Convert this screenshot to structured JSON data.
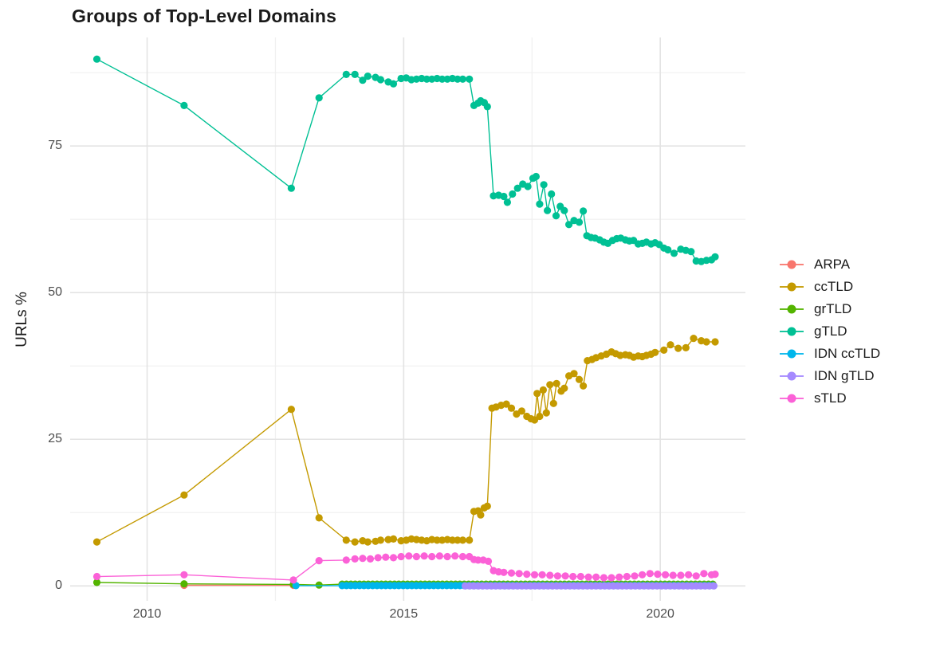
{
  "page": {
    "background": "#ffffff"
  },
  "chart_data": {
    "type": "line",
    "title": "Groups of Top-Level Domains",
    "xlabel": "",
    "ylabel": "URLs %",
    "xlim": [
      2008.5,
      2021.66
    ],
    "ylim": [
      -2.0,
      93.5
    ],
    "grid_on": true,
    "legend_position": "right",
    "x_ticks": [
      {
        "value": 2010,
        "label": "2010"
      },
      {
        "value": 2015,
        "label": "2015"
      },
      {
        "value": 2020,
        "label": "2020"
      }
    ],
    "x_minor_ticks": [
      2012.5,
      2017.5
    ],
    "y_ticks": [
      {
        "value": 0,
        "label": "0"
      },
      {
        "value": 25,
        "label": "25"
      },
      {
        "value": 50,
        "label": "50"
      },
      {
        "value": 75,
        "label": "75"
      }
    ],
    "y_minor_ticks": [
      12.5,
      37.5,
      62.5,
      87.5
    ],
    "grid": {
      "major_color": "#e3e3e3",
      "minor_color": "#f0f0f0",
      "background": "#ffffff"
    },
    "series": [
      {
        "name": "ARPA",
        "color": "#F8766D",
        "points": [
          [
            2010.72,
            0.1
          ],
          [
            2012.85,
            0.1
          ]
        ]
      },
      {
        "name": "ccTLD",
        "color": "#C49A00",
        "points": [
          [
            2009.02,
            7.5
          ],
          [
            2010.72,
            15.5
          ],
          [
            2012.81,
            30.1
          ],
          [
            2013.35,
            11.6
          ],
          [
            2013.88,
            7.8
          ],
          [
            2014.05,
            7.5
          ],
          [
            2014.2,
            7.7
          ],
          [
            2014.3,
            7.5
          ],
          [
            2014.45,
            7.6
          ],
          [
            2014.55,
            7.8
          ],
          [
            2014.7,
            7.9
          ],
          [
            2014.8,
            8.0
          ],
          [
            2014.95,
            7.7
          ],
          [
            2015.05,
            7.8
          ],
          [
            2015.15,
            8.0
          ],
          [
            2015.25,
            7.9
          ],
          [
            2015.35,
            7.8
          ],
          [
            2015.45,
            7.7
          ],
          [
            2015.55,
            7.9
          ],
          [
            2015.65,
            7.8
          ],
          [
            2015.75,
            7.8
          ],
          [
            2015.85,
            7.9
          ],
          [
            2015.95,
            7.8
          ],
          [
            2016.05,
            7.8
          ],
          [
            2016.15,
            7.8
          ],
          [
            2016.28,
            7.8
          ],
          [
            2016.37,
            12.7
          ],
          [
            2016.45,
            12.8
          ],
          [
            2016.5,
            12.1
          ],
          [
            2016.57,
            13.3
          ],
          [
            2016.63,
            13.6
          ],
          [
            2016.72,
            30.3
          ],
          [
            2016.8,
            30.5
          ],
          [
            2016.9,
            30.8
          ],
          [
            2017.0,
            31.0
          ],
          [
            2017.1,
            30.3
          ],
          [
            2017.2,
            29.3
          ],
          [
            2017.3,
            29.8
          ],
          [
            2017.4,
            28.9
          ],
          [
            2017.48,
            28.5
          ],
          [
            2017.55,
            28.3
          ],
          [
            2017.6,
            32.8
          ],
          [
            2017.65,
            28.9
          ],
          [
            2017.72,
            33.4
          ],
          [
            2017.78,
            29.5
          ],
          [
            2017.85,
            34.3
          ],
          [
            2017.92,
            31.1
          ],
          [
            2017.98,
            34.5
          ],
          [
            2018.07,
            33.2
          ],
          [
            2018.13,
            33.7
          ],
          [
            2018.22,
            35.8
          ],
          [
            2018.32,
            36.2
          ],
          [
            2018.42,
            35.2
          ],
          [
            2018.5,
            34.1
          ],
          [
            2018.58,
            38.4
          ],
          [
            2018.67,
            38.6
          ],
          [
            2018.75,
            38.9
          ],
          [
            2018.85,
            39.2
          ],
          [
            2018.95,
            39.5
          ],
          [
            2019.05,
            39.9
          ],
          [
            2019.13,
            39.6
          ],
          [
            2019.22,
            39.3
          ],
          [
            2019.32,
            39.4
          ],
          [
            2019.4,
            39.3
          ],
          [
            2019.48,
            39.0
          ],
          [
            2019.57,
            39.2
          ],
          [
            2019.65,
            39.1
          ],
          [
            2019.73,
            39.3
          ],
          [
            2019.82,
            39.5
          ],
          [
            2019.9,
            39.8
          ],
          [
            2020.07,
            40.2
          ],
          [
            2020.2,
            41.1
          ],
          [
            2020.35,
            40.5
          ],
          [
            2020.5,
            40.6
          ],
          [
            2020.65,
            42.2
          ],
          [
            2020.8,
            41.8
          ],
          [
            2020.9,
            41.6
          ],
          [
            2021.07,
            41.6
          ]
        ]
      },
      {
        "name": "grTLD",
        "color": "#53B400",
        "points": [
          [
            2009.02,
            0.6
          ],
          [
            2010.72,
            0.35
          ],
          [
            2012.85,
            0.25
          ],
          [
            2013.35,
            0.15
          ]
        ],
        "flat": {
          "from": 2013.8,
          "to": 2021.07,
          "step": 0.085,
          "value": 0.3
        }
      },
      {
        "name": "gTLD",
        "color": "#00C094",
        "points": [
          [
            2009.02,
            89.8
          ],
          [
            2010.72,
            81.9
          ],
          [
            2012.81,
            67.8
          ],
          [
            2013.35,
            83.2
          ],
          [
            2013.88,
            87.2
          ],
          [
            2014.05,
            87.2
          ],
          [
            2014.2,
            86.2
          ],
          [
            2014.3,
            86.9
          ],
          [
            2014.45,
            86.7
          ],
          [
            2014.55,
            86.3
          ],
          [
            2014.7,
            85.9
          ],
          [
            2014.8,
            85.6
          ],
          [
            2014.95,
            86.5
          ],
          [
            2015.05,
            86.6
          ],
          [
            2015.15,
            86.3
          ],
          [
            2015.25,
            86.4
          ],
          [
            2015.35,
            86.5
          ],
          [
            2015.45,
            86.4
          ],
          [
            2015.55,
            86.4
          ],
          [
            2015.65,
            86.5
          ],
          [
            2015.75,
            86.4
          ],
          [
            2015.85,
            86.4
          ],
          [
            2015.95,
            86.5
          ],
          [
            2016.05,
            86.4
          ],
          [
            2016.15,
            86.4
          ],
          [
            2016.28,
            86.4
          ],
          [
            2016.37,
            81.9
          ],
          [
            2016.45,
            82.3
          ],
          [
            2016.5,
            82.7
          ],
          [
            2016.57,
            82.4
          ],
          [
            2016.63,
            81.7
          ],
          [
            2016.75,
            66.5
          ],
          [
            2016.85,
            66.6
          ],
          [
            2016.95,
            66.4
          ],
          [
            2017.02,
            65.4
          ],
          [
            2017.12,
            66.8
          ],
          [
            2017.22,
            67.8
          ],
          [
            2017.32,
            68.5
          ],
          [
            2017.42,
            68.1
          ],
          [
            2017.52,
            69.5
          ],
          [
            2017.58,
            69.8
          ],
          [
            2017.65,
            65.1
          ],
          [
            2017.73,
            68.4
          ],
          [
            2017.8,
            64.0
          ],
          [
            2017.88,
            66.8
          ],
          [
            2017.97,
            63.1
          ],
          [
            2018.05,
            64.7
          ],
          [
            2018.13,
            64.0
          ],
          [
            2018.22,
            61.6
          ],
          [
            2018.32,
            62.3
          ],
          [
            2018.42,
            62.0
          ],
          [
            2018.5,
            63.9
          ],
          [
            2018.57,
            59.7
          ],
          [
            2018.65,
            59.4
          ],
          [
            2018.73,
            59.3
          ],
          [
            2018.82,
            59.0
          ],
          [
            2018.9,
            58.6
          ],
          [
            2018.98,
            58.4
          ],
          [
            2019.07,
            58.9
          ],
          [
            2019.15,
            59.2
          ],
          [
            2019.23,
            59.3
          ],
          [
            2019.32,
            59.0
          ],
          [
            2019.4,
            58.8
          ],
          [
            2019.48,
            58.9
          ],
          [
            2019.57,
            58.3
          ],
          [
            2019.65,
            58.4
          ],
          [
            2019.73,
            58.6
          ],
          [
            2019.82,
            58.3
          ],
          [
            2019.9,
            58.5
          ],
          [
            2019.98,
            58.2
          ],
          [
            2020.07,
            57.6
          ],
          [
            2020.15,
            57.3
          ],
          [
            2020.27,
            56.7
          ],
          [
            2020.4,
            57.4
          ],
          [
            2020.5,
            57.2
          ],
          [
            2020.6,
            57.0
          ],
          [
            2020.7,
            55.4
          ],
          [
            2020.8,
            55.3
          ],
          [
            2020.9,
            55.5
          ],
          [
            2021.0,
            55.6
          ],
          [
            2021.07,
            56.1
          ]
        ]
      },
      {
        "name": "IDN ccTLD",
        "color": "#00B6EB",
        "points": [
          [
            2012.9,
            0.05
          ]
        ],
        "flat": {
          "from": 2013.8,
          "to": 2021.07,
          "step": 0.085,
          "value": 0.05
        }
      },
      {
        "name": "IDN gTLD",
        "color": "#A58AFF",
        "points": [],
        "flat": {
          "from": 2016.2,
          "to": 2021.07,
          "step": 0.085,
          "value": 0.0
        }
      },
      {
        "name": "sTLD",
        "color": "#FB61D7",
        "points": [
          [
            2009.02,
            1.6
          ],
          [
            2010.72,
            1.9
          ],
          [
            2012.85,
            1.0
          ],
          [
            2013.35,
            4.3
          ],
          [
            2013.88,
            4.4
          ],
          [
            2014.05,
            4.6
          ],
          [
            2014.2,
            4.7
          ],
          [
            2014.35,
            4.6
          ],
          [
            2014.5,
            4.8
          ],
          [
            2014.65,
            4.9
          ],
          [
            2014.8,
            4.8
          ],
          [
            2014.95,
            5.0
          ],
          [
            2015.1,
            5.1
          ],
          [
            2015.25,
            5.0
          ],
          [
            2015.4,
            5.1
          ],
          [
            2015.55,
            5.0
          ],
          [
            2015.7,
            5.1
          ],
          [
            2015.85,
            5.0
          ],
          [
            2016.0,
            5.1
          ],
          [
            2016.15,
            5.0
          ],
          [
            2016.28,
            5.0
          ],
          [
            2016.37,
            4.5
          ],
          [
            2016.45,
            4.4
          ],
          [
            2016.55,
            4.4
          ],
          [
            2016.65,
            4.2
          ],
          [
            2016.75,
            2.6
          ],
          [
            2016.85,
            2.4
          ],
          [
            2016.95,
            2.3
          ],
          [
            2017.1,
            2.2
          ],
          [
            2017.25,
            2.1
          ],
          [
            2017.4,
            2.0
          ],
          [
            2017.55,
            1.9
          ],
          [
            2017.7,
            1.9
          ],
          [
            2017.85,
            1.8
          ],
          [
            2018.0,
            1.7
          ],
          [
            2018.15,
            1.7
          ],
          [
            2018.3,
            1.6
          ],
          [
            2018.45,
            1.6
          ],
          [
            2018.6,
            1.5
          ],
          [
            2018.75,
            1.5
          ],
          [
            2018.9,
            1.4
          ],
          [
            2019.05,
            1.4
          ],
          [
            2019.2,
            1.5
          ],
          [
            2019.35,
            1.6
          ],
          [
            2019.5,
            1.7
          ],
          [
            2019.65,
            1.9
          ],
          [
            2019.8,
            2.1
          ],
          [
            2019.95,
            2.0
          ],
          [
            2020.1,
            1.9
          ],
          [
            2020.25,
            1.8
          ],
          [
            2020.4,
            1.8
          ],
          [
            2020.55,
            1.9
          ],
          [
            2020.7,
            1.7
          ],
          [
            2020.85,
            2.1
          ],
          [
            2021.0,
            1.9
          ],
          [
            2021.07,
            2.0
          ]
        ]
      }
    ]
  }
}
